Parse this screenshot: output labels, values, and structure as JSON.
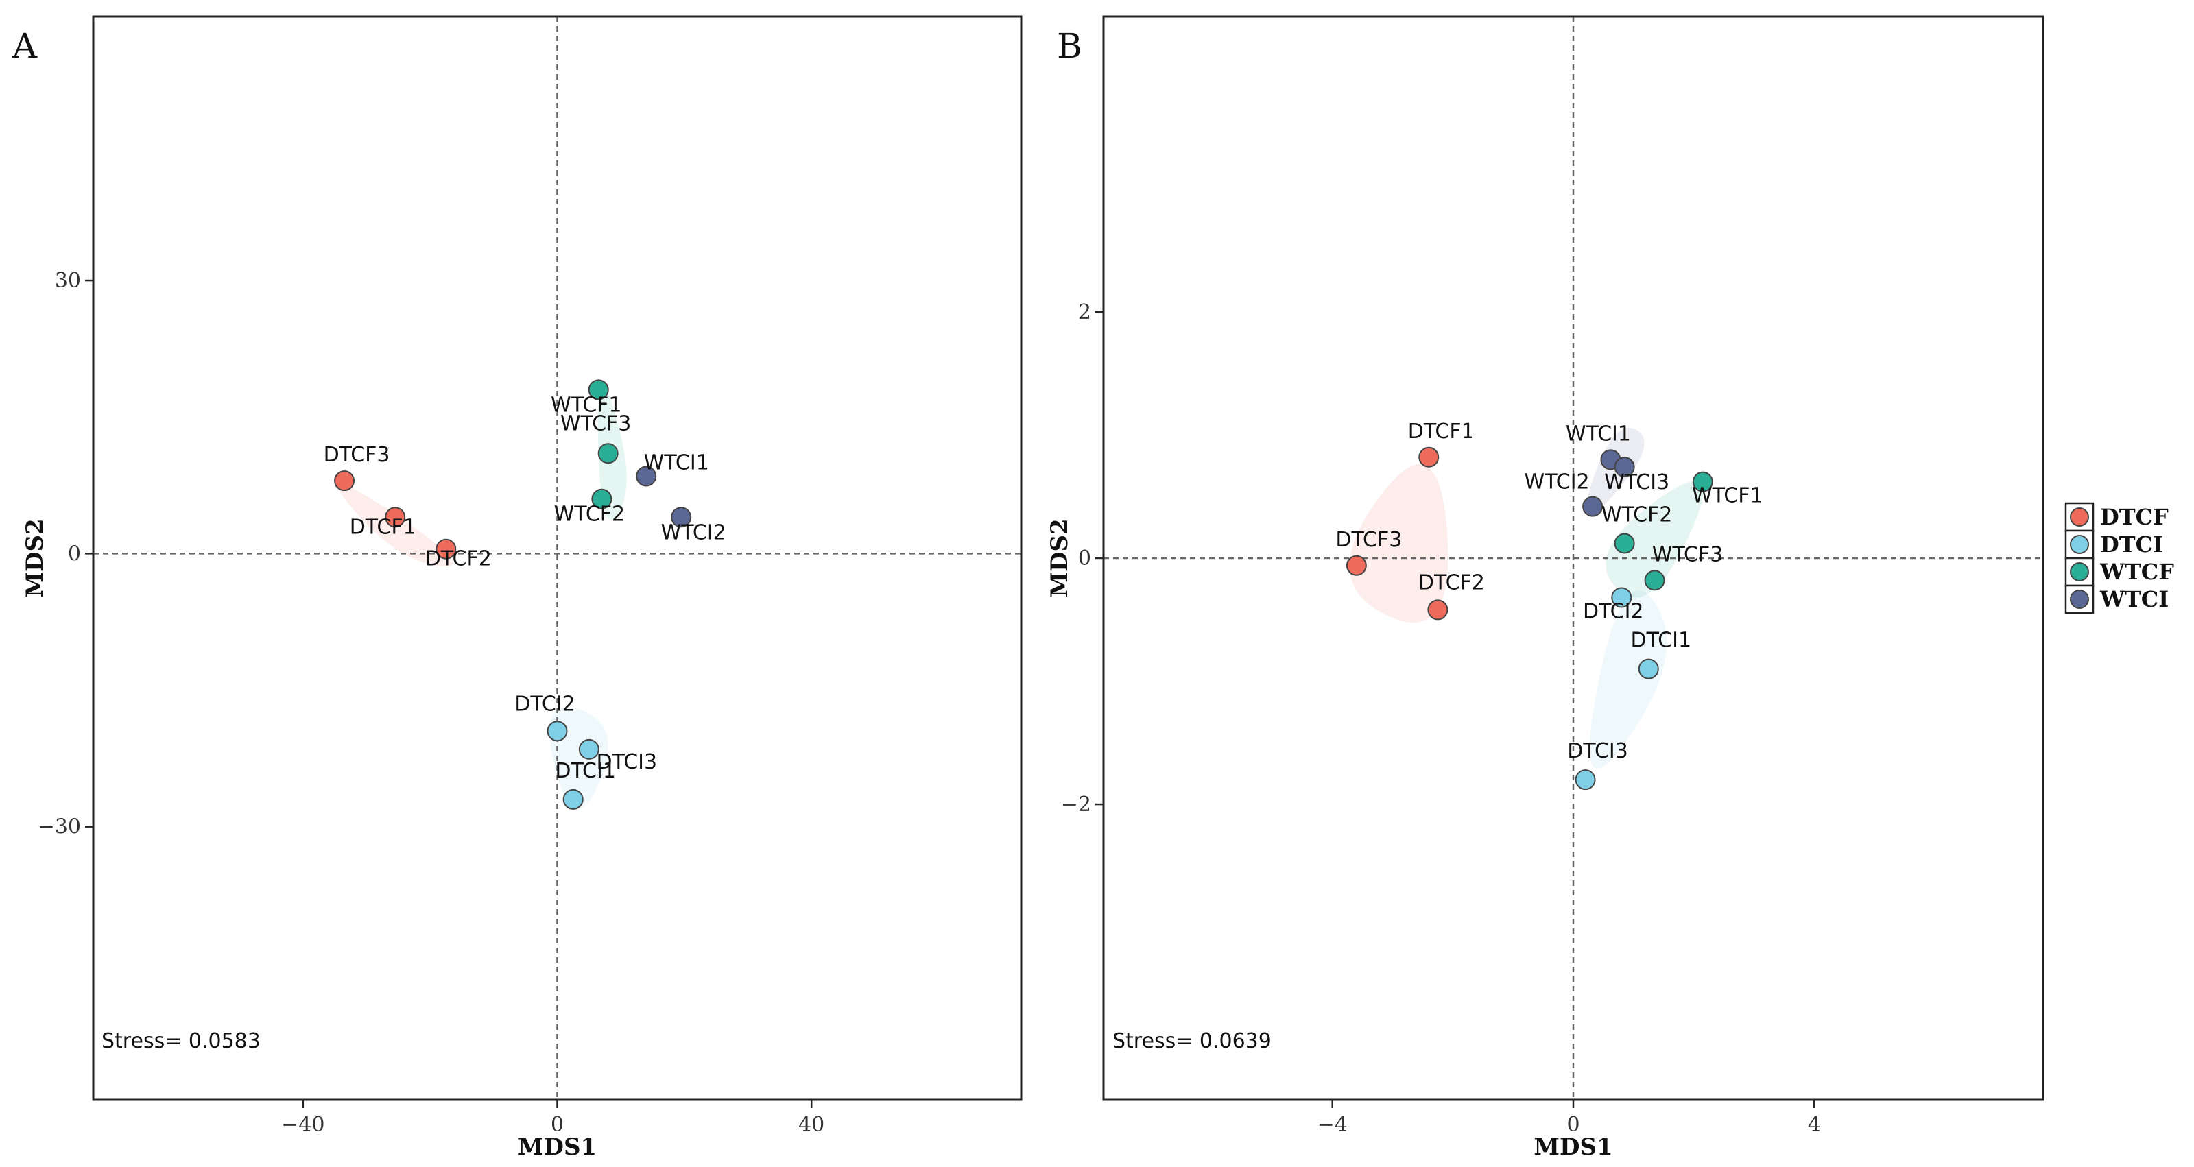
{
  "colors": {
    "DTCF": "#EE6A5A",
    "DTCI": "#7FD0E6",
    "WTCF": "#2BAE96",
    "WTCI": "#5B6896"
  },
  "legend": {
    "items": [
      {
        "label": "DTCF",
        "color": "#EE6A5A"
      },
      {
        "label": "DTCI",
        "color": "#7FD0E6"
      },
      {
        "label": "WTCF",
        "color": "#2BAE96"
      },
      {
        "label": "WTCI",
        "color": "#5B6896"
      }
    ]
  },
  "chart_data": [
    {
      "type": "scatter",
      "panel": "A",
      "xlabel": "MDS1",
      "ylabel": "MDS2",
      "xlim": [
        -73,
        73
      ],
      "ylim": [
        -60,
        59
      ],
      "xticks": [
        -40,
        0,
        40
      ],
      "yticks": [
        -30,
        0,
        30
      ],
      "xtick_labels": [
        "−40",
        "0",
        "40"
      ],
      "ytick_labels": [
        "−30",
        "0",
        "30"
      ],
      "stress": "Stress= 0.0583",
      "points": [
        {
          "label": "DTCF1",
          "group": "DTCF",
          "x": -25.5,
          "y": 4.0
        },
        {
          "label": "DTCF2",
          "group": "DTCF",
          "x": -17.5,
          "y": 0.5
        },
        {
          "label": "DTCF3",
          "group": "DTCF",
          "x": -33.5,
          "y": 8.0
        },
        {
          "label": "DTCI1",
          "group": "DTCI",
          "x": 2.5,
          "y": -27.0
        },
        {
          "label": "DTCI2",
          "group": "DTCI",
          "x": 0.0,
          "y": -19.5
        },
        {
          "label": "DTCI3",
          "group": "DTCI",
          "x": 5.0,
          "y": -21.5
        },
        {
          "label": "WTCF1",
          "group": "WTCF",
          "x": 6.5,
          "y": 18.0
        },
        {
          "label": "WTCF2",
          "group": "WTCF",
          "x": 7.0,
          "y": 6.0
        },
        {
          "label": "WTCF3",
          "group": "WTCF",
          "x": 8.0,
          "y": 11.0
        },
        {
          "label": "WTCI1",
          "group": "WTCI",
          "x": 14.0,
          "y": 8.5
        },
        {
          "label": "WTCI2",
          "group": "WTCI",
          "x": 19.5,
          "y": 4.0
        }
      ]
    },
    {
      "type": "scatter",
      "panel": "B",
      "xlabel": "MDS1",
      "ylabel": "MDS2",
      "xlim": [
        -7.8,
        7.8
      ],
      "ylim": [
        -4.4,
        4.4
      ],
      "xticks": [
        -4,
        0,
        4
      ],
      "yticks": [
        -2,
        0,
        2
      ],
      "xtick_labels": [
        "−4",
        "0",
        "4"
      ],
      "ytick_labels": [
        "−2",
        "0",
        "2"
      ],
      "stress": "Stress= 0.0639",
      "points": [
        {
          "label": "DTCF1",
          "group": "DTCF",
          "x": -2.4,
          "y": 0.82
        },
        {
          "label": "DTCF2",
          "group": "DTCF",
          "x": -2.25,
          "y": -0.42
        },
        {
          "label": "DTCF3",
          "group": "DTCF",
          "x": -3.6,
          "y": -0.06
        },
        {
          "label": "DTCI1",
          "group": "DTCI",
          "x": 1.25,
          "y": -0.9
        },
        {
          "label": "DTCI2",
          "group": "DTCI",
          "x": 0.8,
          "y": -0.32
        },
        {
          "label": "DTCI3",
          "group": "DTCI",
          "x": 0.2,
          "y": -1.8
        },
        {
          "label": "WTCF1",
          "group": "WTCF",
          "x": 2.15,
          "y": 0.62
        },
        {
          "label": "WTCF2",
          "group": "WTCF",
          "x": 0.85,
          "y": 0.12
        },
        {
          "label": "WTCF3",
          "group": "WTCF",
          "x": 1.35,
          "y": -0.18
        },
        {
          "label": "WTCI1",
          "group": "WTCI",
          "x": 0.62,
          "y": 0.8
        },
        {
          "label": "WTCI2",
          "group": "WTCI",
          "x": 0.32,
          "y": 0.42
        },
        {
          "label": "WTCI3",
          "group": "WTCI",
          "x": 0.85,
          "y": 0.74
        }
      ]
    }
  ]
}
